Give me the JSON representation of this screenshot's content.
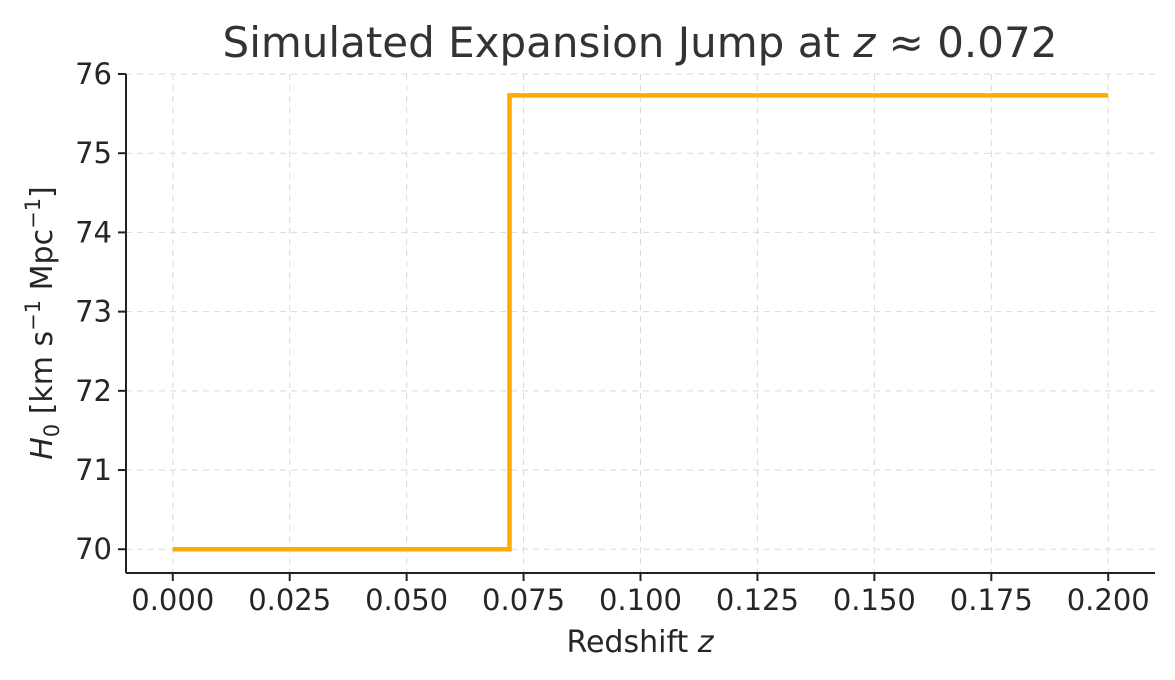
{
  "chart_data": {
    "type": "line",
    "title_main": "Simulated Expansion Jump at ",
    "title_var": "z",
    "title_rel": " ≈ 0.072",
    "xlabel_main": "Redshift ",
    "xlabel_var": "z",
    "ylabel_var": "H",
    "ylabel_sub": "0",
    "ylabel_units_a": "  [km s",
    "ylabel_sup_a": "−1",
    "ylabel_units_b": " Mpc",
    "ylabel_sup_b": "−1",
    "ylabel_units_c": "]",
    "xlim": [
      -0.01,
      0.21
    ],
    "ylim": [
      69.7,
      76.0
    ],
    "x_ticks": [
      0.0,
      0.025,
      0.05,
      0.075,
      0.1,
      0.125,
      0.15,
      0.175,
      0.2
    ],
    "x_tick_labels": [
      "0.000",
      "0.025",
      "0.050",
      "0.075",
      "0.100",
      "0.125",
      "0.150",
      "0.175",
      "0.200"
    ],
    "y_ticks": [
      70,
      71,
      72,
      73,
      74,
      75,
      76
    ],
    "y_tick_labels": [
      "70",
      "71",
      "72",
      "73",
      "74",
      "75",
      "76"
    ],
    "grid": true,
    "series": [
      {
        "color": "#FFAA00",
        "step": true,
        "x": [
          0.0,
          0.072,
          0.072,
          0.2
        ],
        "values": [
          70.0,
          70.0,
          75.73,
          75.73
        ]
      }
    ]
  }
}
